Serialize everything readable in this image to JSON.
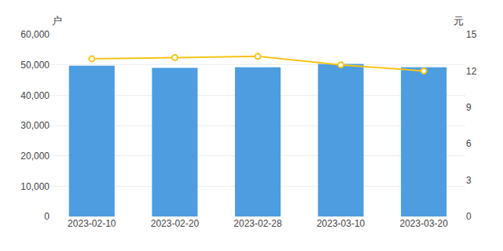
{
  "chart_data": {
    "type": "combo",
    "categories": [
      "2023-02-10",
      "2023-02-20",
      "2023-02-28",
      "2023-03-10",
      "2023-03-20"
    ],
    "series": [
      {
        "type": "bar",
        "color": "#4d9de0",
        "values": [
          49700,
          49000,
          49200,
          50300,
          49200
        ]
      },
      {
        "type": "line",
        "axis": "y2",
        "color": "#f5c518",
        "marker": "circle",
        "values": [
          13.0,
          13.1,
          13.2,
          12.5,
          12.0
        ]
      }
    ],
    "ylabel": "户",
    "y2label": "元",
    "ylim": [
      0,
      60000
    ],
    "yticks": [
      0,
      {
        "value": 10000,
        "label": "10,000"
      },
      {
        "value": 20000,
        "label": "20,000"
      },
      {
        "value": 30000,
        "label": "30,000"
      },
      {
        "value": 40000,
        "label": "40,000"
      },
      {
        "value": 50000,
        "label": "50,000"
      },
      {
        "value": 60000,
        "label": "60,000"
      }
    ],
    "y2lim": [
      0,
      15
    ],
    "y2ticks": [
      0,
      3,
      6,
      9,
      12,
      15
    ],
    "grid": true
  }
}
